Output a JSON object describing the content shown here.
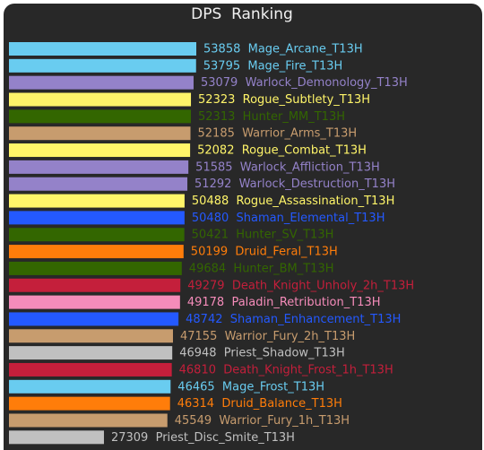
{
  "chart_data": {
    "type": "bar",
    "orientation": "horizontal",
    "title": "DPS  Ranking",
    "xlabel": "",
    "ylabel": "",
    "grid": false,
    "xlim": [
      0,
      53858
    ],
    "rows": [
      {
        "value": 53858,
        "name": "Mage_Arcane_T13H",
        "color": "#69ccf0"
      },
      {
        "value": 53795,
        "name": "Mage_Fire_T13H",
        "color": "#69ccf0"
      },
      {
        "value": 53079,
        "name": "Warlock_Demonology_T13H",
        "color": "#9482c9"
      },
      {
        "value": 52323,
        "name": "Rogue_Subtlety_T13H",
        "color": "#fff569"
      },
      {
        "value": 52313,
        "name": "Hunter_MM_T13H",
        "color": "#336600"
      },
      {
        "value": 52185,
        "name": "Warrior_Arms_T13H",
        "color": "#c79c6e"
      },
      {
        "value": 52082,
        "name": "Rogue_Combat_T13H",
        "color": "#fff569"
      },
      {
        "value": 51585,
        "name": "Warlock_Affliction_T13H",
        "color": "#9482c9"
      },
      {
        "value": 51292,
        "name": "Warlock_Destruction_T13H",
        "color": "#9482c9"
      },
      {
        "value": 50488,
        "name": "Rogue_Assassination_T13H",
        "color": "#fff569"
      },
      {
        "value": 50480,
        "name": "Shaman_Elemental_T13H",
        "color": "#2459ff"
      },
      {
        "value": 50421,
        "name": "Hunter_SV_T13H",
        "color": "#336600"
      },
      {
        "value": 50199,
        "name": "Druid_Feral_T13H",
        "color": "#ff7d0a"
      },
      {
        "value": 49684,
        "name": "Hunter_BM_T13H",
        "color": "#336600"
      },
      {
        "value": 49279,
        "name": "Death_Knight_Unholy_2h_T13H",
        "color": "#c41f3b"
      },
      {
        "value": 49178,
        "name": "Paladin_Retribution_T13H",
        "color": "#f58cba"
      },
      {
        "value": 48742,
        "name": "Shaman_Enhancement_T13H",
        "color": "#2459ff"
      },
      {
        "value": 47155,
        "name": "Warrior_Fury_2h_T13H",
        "color": "#c79c6e"
      },
      {
        "value": 46948,
        "name": "Priest_Shadow_T13H",
        "color": "#c0c0c0"
      },
      {
        "value": 46810,
        "name": "Death_Knight_Frost_1h_T13H",
        "color": "#c41f3b"
      },
      {
        "value": 46465,
        "name": "Mage_Frost_T13H",
        "color": "#69ccf0"
      },
      {
        "value": 46314,
        "name": "Druid_Balance_T13H",
        "color": "#ff7d0a"
      },
      {
        "value": 45549,
        "name": "Warrior_Fury_1h_T13H",
        "color": "#c79c6e"
      },
      {
        "value": 27309,
        "name": "Priest_Disc_Smite_T13H",
        "color": "#c0c0c0"
      }
    ]
  },
  "colors": {
    "background": "#282828",
    "title": "#f0f0f0"
  }
}
